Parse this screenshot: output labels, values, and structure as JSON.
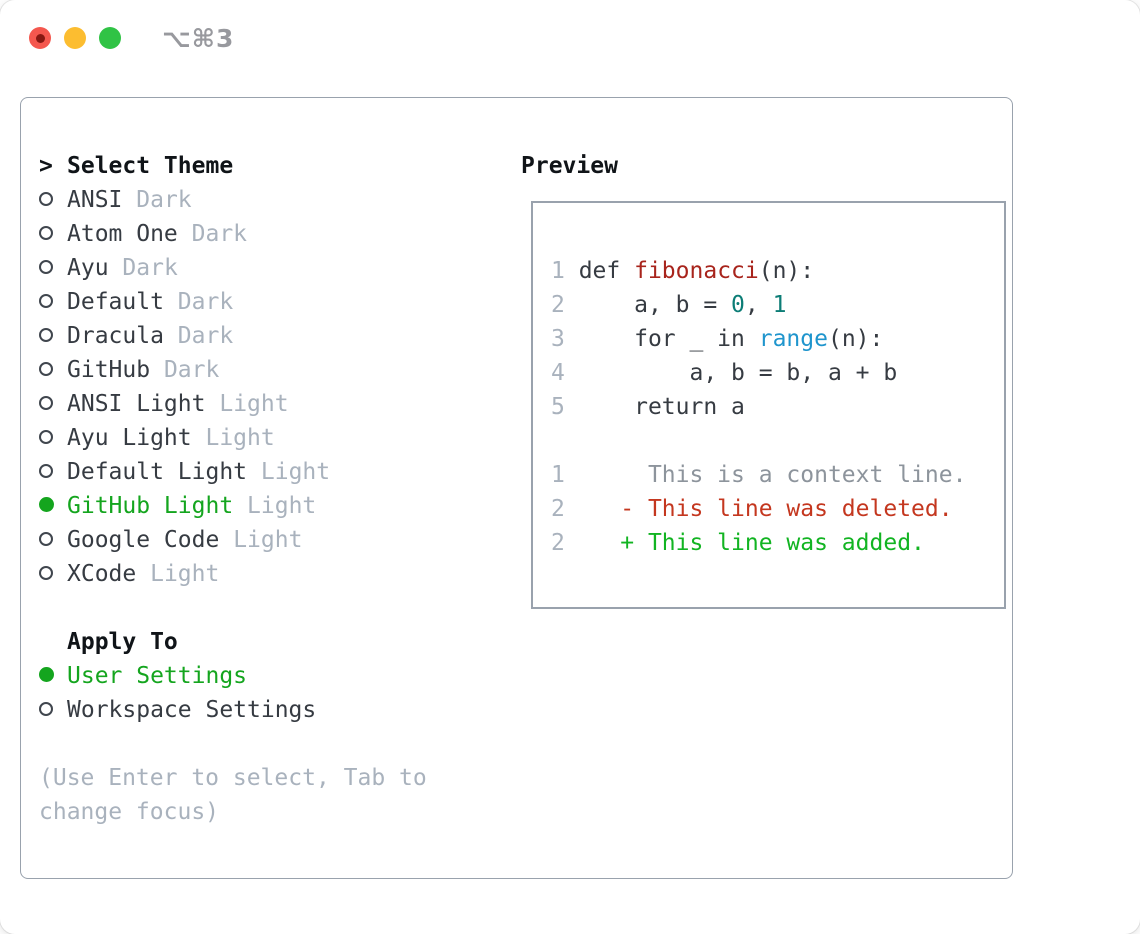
{
  "window": {
    "title": "⌥⌘3"
  },
  "colors": {
    "accent_green": "#14a51e",
    "diff_added_green": "#12b422",
    "diff_deleted_red": "#c4371f",
    "function_red": "#a8241c",
    "number_teal": "#0c7d76",
    "builtin_blue": "#1f95cd",
    "muted_gray": "#a9b2bd",
    "text_dark": "#363b42",
    "panel_border": "#99a2ad",
    "traffic_red": "#f4574e",
    "traffic_yellow": "#fcbd30",
    "traffic_green": "#30c345"
  },
  "theme_selector": {
    "prompt": ">",
    "title": "Select Theme",
    "items": [
      {
        "name": "ANSI",
        "variant": "Dark",
        "selected": false
      },
      {
        "name": "Atom One",
        "variant": "Dark",
        "selected": false
      },
      {
        "name": "Ayu",
        "variant": "Dark",
        "selected": false
      },
      {
        "name": "Default",
        "variant": "Dark",
        "selected": false
      },
      {
        "name": "Dracula",
        "variant": "Dark",
        "selected": false
      },
      {
        "name": "GitHub",
        "variant": "Dark",
        "selected": false
      },
      {
        "name": "ANSI Light",
        "variant": "Light",
        "selected": false
      },
      {
        "name": "Ayu Light",
        "variant": "Light",
        "selected": false
      },
      {
        "name": "Default Light",
        "variant": "Light",
        "selected": false
      },
      {
        "name": "GitHub Light",
        "variant": "Light",
        "selected": true
      },
      {
        "name": "Google Code",
        "variant": "Light",
        "selected": false
      },
      {
        "name": "XCode",
        "variant": "Light",
        "selected": false
      }
    ]
  },
  "apply_to": {
    "title": "Apply To",
    "options": [
      {
        "label": "User Settings",
        "selected": true
      },
      {
        "label": "Workspace Settings",
        "selected": false
      }
    ]
  },
  "hint": "(Use Enter to select, Tab to change focus)",
  "preview": {
    "title": "Preview",
    "lines": [
      {
        "num": "1",
        "segments": [
          {
            "text": " def ",
            "style": "code"
          },
          {
            "text": "fibonacci",
            "style": "function"
          },
          {
            "text": "(n):",
            "style": "code"
          }
        ]
      },
      {
        "num": "2",
        "segments": [
          {
            "text": "     a, b = ",
            "style": "code"
          },
          {
            "text": "0",
            "style": "number"
          },
          {
            "text": ", ",
            "style": "code"
          },
          {
            "text": "1",
            "style": "number"
          }
        ]
      },
      {
        "num": "3",
        "segments": [
          {
            "text": "     for _ in ",
            "style": "code"
          },
          {
            "text": "range",
            "style": "builtin"
          },
          {
            "text": "(n):",
            "style": "code"
          }
        ]
      },
      {
        "num": "4",
        "segments": [
          {
            "text": "         a, b = b, a + b",
            "style": "code"
          }
        ]
      },
      {
        "num": "5",
        "segments": [
          {
            "text": "     return a",
            "style": "code"
          }
        ]
      },
      {
        "num": "",
        "segments": []
      },
      {
        "num": "1",
        "segments": [
          {
            "text": "      This is a context line.",
            "style": "context"
          }
        ]
      },
      {
        "num": "2",
        "segments": [
          {
            "text": "    - This line was deleted.",
            "style": "deleted"
          }
        ]
      },
      {
        "num": "2",
        "segments": [
          {
            "text": "    + This line was added.",
            "style": "added"
          }
        ]
      }
    ]
  }
}
